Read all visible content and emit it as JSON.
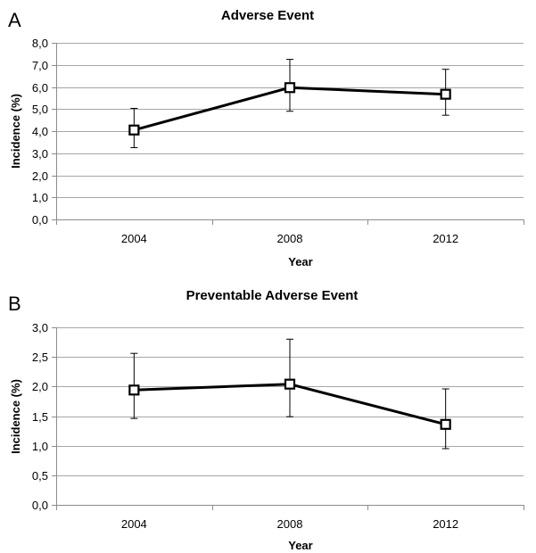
{
  "chart_data": [
    {
      "panel": "A",
      "type": "line",
      "title": "Adverse Event",
      "xlabel": "Year",
      "ylabel": "Incidence (%)",
      "categories": [
        "2004",
        "2008",
        "2012"
      ],
      "ylim": [
        0,
        8
      ],
      "y_ticks": [
        "0,0",
        "1,0",
        "2,0",
        "3,0",
        "4,0",
        "5,0",
        "6,0",
        "7,0",
        "8,0"
      ],
      "y_tick_values": [
        0,
        1,
        2,
        3,
        4,
        5,
        6,
        7,
        8
      ],
      "grid": true,
      "series": [
        {
          "values": [
            4.05,
            5.97,
            5.67
          ],
          "error_low": [
            3.25,
            4.9,
            4.72
          ],
          "error_high": [
            5.03,
            7.25,
            6.8
          ]
        }
      ]
    },
    {
      "panel": "B",
      "type": "line",
      "title": "Preventable Adverse Event",
      "xlabel": "Year",
      "ylabel": "Incidence (%)",
      "categories": [
        "2004",
        "2008",
        "2012"
      ],
      "ylim": [
        0,
        3
      ],
      "y_ticks": [
        "0,0",
        "0,5",
        "1,0",
        "1,5",
        "2,0",
        "2,5",
        "3,0"
      ],
      "y_tick_values": [
        0,
        0.5,
        1,
        1.5,
        2,
        2.5,
        3
      ],
      "grid": true,
      "series": [
        {
          "values": [
            1.94,
            2.04,
            1.36
          ],
          "error_low": [
            1.46,
            1.49,
            0.95
          ],
          "error_high": [
            2.56,
            2.8,
            1.96
          ]
        }
      ]
    }
  ]
}
